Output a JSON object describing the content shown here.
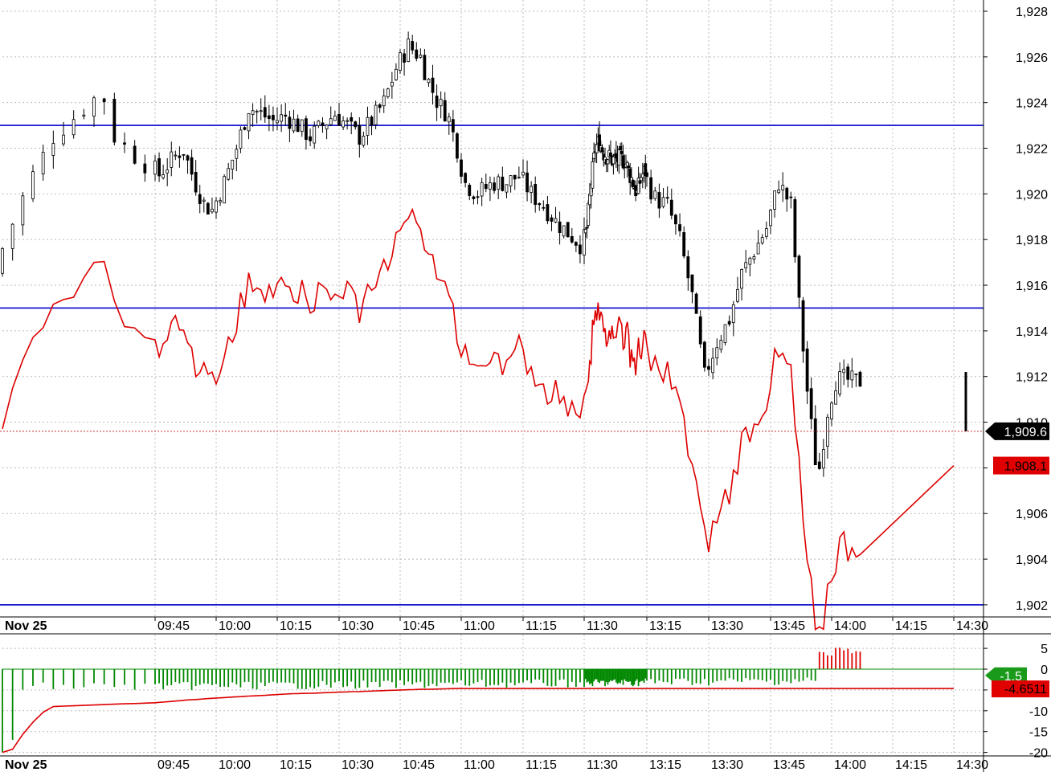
{
  "chart_data": [
    {
      "type": "candlestick",
      "panel": "price",
      "date_label": "Nov 25",
      "y_ticks": [
        "1,928",
        "1,926",
        "1,924",
        "1,922",
        "1,920",
        "1,918",
        "1,916",
        "1,914",
        "1,912",
        "1,910",
        "1,908",
        "1,906",
        "1,904",
        "1,902"
      ],
      "y_range": [
        1901.6,
        1928.5
      ],
      "x_ticks": [
        "09:45",
        "10:00",
        "10:15",
        "10:30",
        "10:45",
        "11:00",
        "11:15",
        "11:30",
        "13:15",
        "13:30",
        "13:45",
        "14:00",
        "14:15",
        "14:30"
      ],
      "horizontal_lines": [
        1923.0,
        1915.0,
        1902.0
      ],
      "last_price": 1909.6,
      "last_price_label": "1,909.6",
      "overlay_value": 1908.1,
      "overlay_label": "1,908.1",
      "price_path": [
        [
          9.5,
          1916.5
        ],
        [
          9.56,
          1920.5
        ],
        [
          9.6,
          1922.5
        ],
        [
          9.64,
          1923.5
        ],
        [
          9.68,
          1924.5
        ],
        [
          9.7,
          1922.5
        ],
        [
          9.74,
          1921.5
        ],
        [
          9.78,
          1920.8
        ],
        [
          9.82,
          1921.3
        ],
        [
          9.88,
          1922.0
        ],
        [
          9.93,
          1920.5
        ],
        [
          9.97,
          1919.5
        ],
        [
          10.0,
          1919.3
        ],
        [
          10.05,
          1920.5
        ],
        [
          10.1,
          1922.0
        ],
        [
          10.15,
          1923.8
        ],
        [
          10.2,
          1923.5
        ],
        [
          10.25,
          1923.2
        ],
        [
          10.3,
          1923.4
        ],
        [
          10.35,
          1923.0
        ],
        [
          10.4,
          1922.5
        ],
        [
          10.45,
          1923.0
        ],
        [
          10.5,
          1923.5
        ],
        [
          10.55,
          1923.0
        ],
        [
          10.6,
          1922.5
        ],
        [
          10.65,
          1923.2
        ],
        [
          10.7,
          1924.0
        ],
        [
          10.75,
          1925.5
        ],
        [
          10.8,
          1926.5
        ],
        [
          10.85,
          1926.0
        ],
        [
          10.88,
          1925.0
        ],
        [
          10.92,
          1924.0
        ],
        [
          10.96,
          1923.5
        ],
        [
          11.0,
          1922.0
        ],
        [
          11.03,
          1920.5
        ],
        [
          11.08,
          1920.0
        ],
        [
          11.15,
          1920.5
        ],
        [
          11.2,
          1920.5
        ],
        [
          11.25,
          1920.8
        ],
        [
          11.3,
          1920.0
        ],
        [
          11.35,
          1919.5
        ],
        [
          11.4,
          1918.8
        ],
        [
          11.45,
          1918.3
        ],
        [
          11.5,
          1917.8
        ],
        [
          11.55,
          1918.5
        ],
        [
          11.6,
          1920.5
        ],
        [
          11.65,
          1922.0
        ],
        [
          11.7,
          1922.3
        ],
        [
          11.75,
          1921.8
        ],
        [
          11.85,
          1921.5
        ],
        [
          12.0,
          1921.5
        ],
        [
          12.05,
          1921.0
        ],
        [
          12.1,
          1920.5
        ],
        [
          12.15,
          1920.0
        ],
        [
          12.2,
          1920.8
        ],
        [
          12.25,
          1921.0
        ],
        [
          12.3,
          1919.8
        ],
        [
          12.35,
          1919.5
        ],
        [
          12.4,
          1918.0
        ],
        [
          12.45,
          1915.5
        ],
        [
          12.5,
          1912.0
        ],
        [
          12.55,
          1913.5
        ],
        [
          12.6,
          1914.5
        ],
        [
          12.65,
          1916.5
        ],
        [
          12.7,
          1917.5
        ],
        [
          12.75,
          1918.5
        ],
        [
          12.8,
          1920.5
        ],
        [
          12.85,
          1919.5
        ],
        [
          12.88,
          1915.5
        ],
        [
          12.92,
          1911.0
        ],
        [
          12.96,
          1907.5
        ],
        [
          13.0,
          1910.5
        ],
        [
          13.03,
          1911.8
        ],
        [
          13.06,
          1911.9
        ],
        [
          13.1,
          1911.8
        ]
      ],
      "series": [
        {
          "name": "",
          "color": "#dd0000"
        }
      ]
    },
    {
      "type": "bar",
      "panel": "oscillator",
      "date_label": "Nov 25",
      "y_ticks": [
        "5",
        "0",
        "-5",
        "-10",
        "-15",
        "-20"
      ],
      "y_range": [
        -21,
        6.5
      ],
      "x_ticks": [
        "09:45",
        "10:00",
        "10:15",
        "10:30",
        "10:45",
        "11:00",
        "11:15",
        "11:30",
        "13:15",
        "13:30",
        "13:45",
        "14:00",
        "14:15",
        "14:30"
      ],
      "last_value": -1.5,
      "last_value_label": "-1.5",
      "signal_value": -4.6511,
      "signal_label": "-4.6511",
      "colors": {
        "positive": "#dd0000",
        "negative": "#008800",
        "signal": "#dd0000"
      }
    }
  ]
}
